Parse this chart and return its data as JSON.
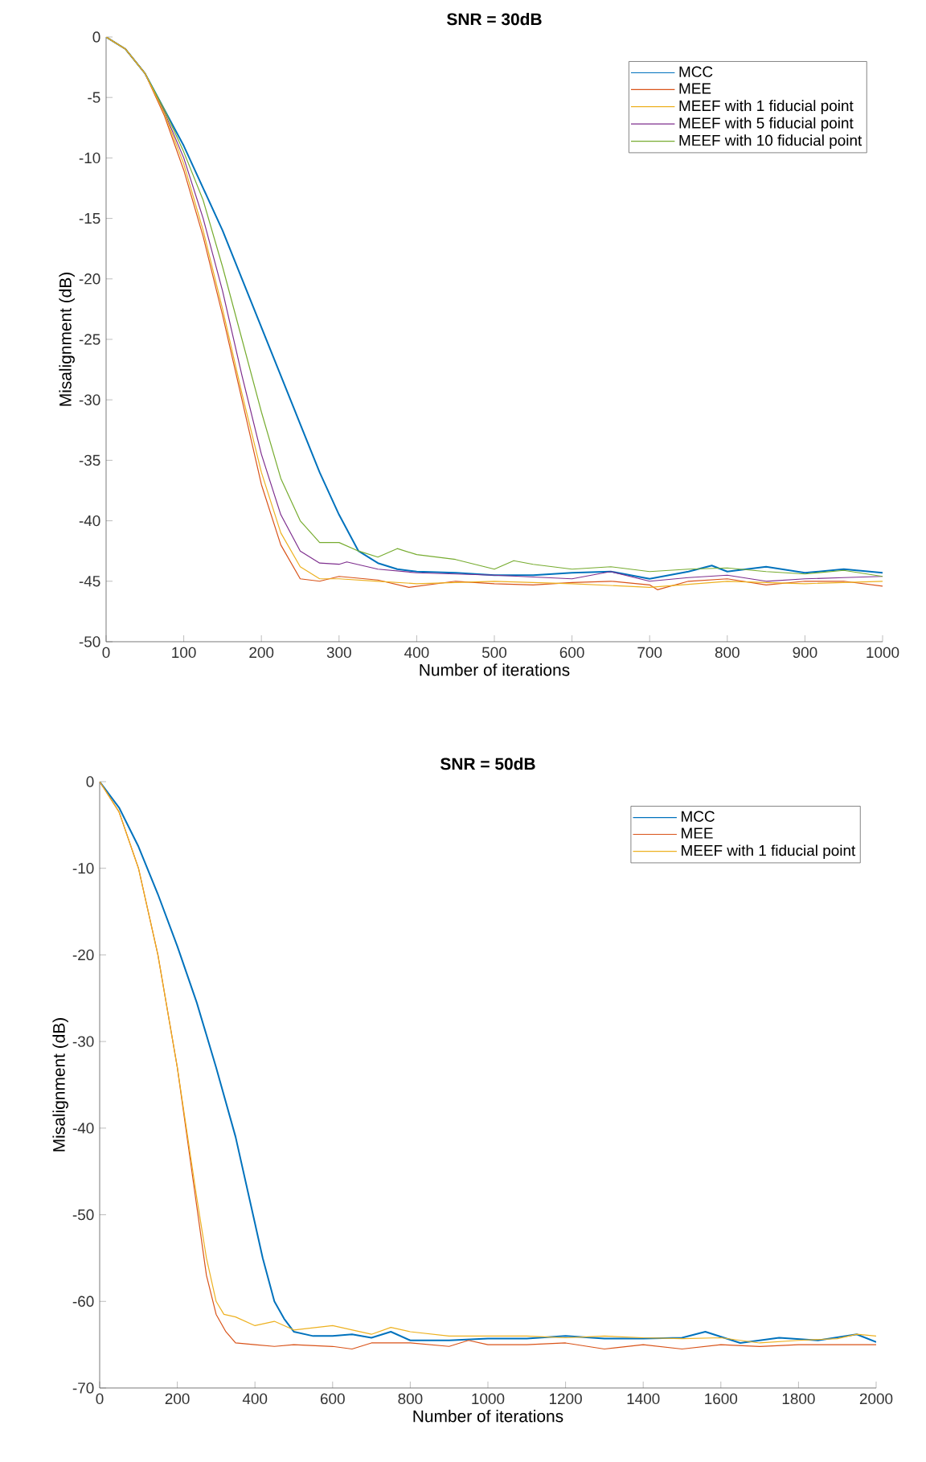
{
  "chart_data": [
    {
      "type": "line",
      "title": "SNR = 30dB",
      "xlabel": "Number of iterations",
      "ylabel": "Misalignment (dB)",
      "xlim": [
        0,
        1000
      ],
      "ylim": [
        -50,
        0
      ],
      "xticks": [
        0,
        100,
        200,
        300,
        400,
        500,
        600,
        700,
        800,
        900,
        1000
      ],
      "yticks": [
        -50,
        -45,
        -40,
        -35,
        -30,
        -25,
        -20,
        -15,
        -10,
        -5,
        0
      ],
      "legend": "top right",
      "series": [
        {
          "name": "MCC",
          "color": "#0072bd",
          "x": [
            0,
            25,
            50,
            75,
            100,
            125,
            150,
            175,
            200,
            225,
            250,
            275,
            300,
            325,
            350,
            375,
            400,
            450,
            500,
            550,
            600,
            650,
            700,
            750,
            780,
            800,
            850,
            900,
            950,
            1000
          ],
          "values": [
            0,
            -1,
            -3,
            -6,
            -9,
            -12.5,
            -16,
            -20,
            -24,
            -28,
            -32,
            -36,
            -39.5,
            -42.5,
            -43.5,
            -44,
            -44.2,
            -44.3,
            -44.5,
            -44.5,
            -44.3,
            -44.2,
            -44.8,
            -44.2,
            -43.7,
            -44.2,
            -43.8,
            -44.3,
            -44,
            -44.3
          ]
        },
        {
          "name": "MEE",
          "color": "#d95319",
          "x": [
            0,
            25,
            50,
            75,
            100,
            125,
            150,
            175,
            200,
            225,
            250,
            275,
            300,
            350,
            390,
            450,
            500,
            550,
            600,
            650,
            700,
            710,
            750,
            800,
            850,
            900,
            950,
            1000
          ],
          "values": [
            0,
            -1,
            -3,
            -6.5,
            -11,
            -16.5,
            -23,
            -30,
            -37,
            -42,
            -44.8,
            -45,
            -44.6,
            -44.9,
            -45.5,
            -45,
            -45.2,
            -45.3,
            -45.1,
            -45,
            -45.3,
            -45.7,
            -45,
            -44.8,
            -45.3,
            -45,
            -45,
            -45.4
          ]
        },
        {
          "name": "MEEF with 1 fiducial point",
          "color": "#edb120",
          "x": [
            0,
            25,
            50,
            75,
            100,
            125,
            150,
            175,
            200,
            225,
            250,
            275,
            300,
            350,
            400,
            500,
            600,
            700,
            800,
            900,
            1000
          ],
          "values": [
            0,
            -1,
            -3,
            -6.3,
            -10.5,
            -16,
            -22.5,
            -29.5,
            -36,
            -41,
            -43.8,
            -44.8,
            -44.8,
            -45,
            -45.2,
            -45,
            -45.2,
            -45.5,
            -45,
            -45.2,
            -45
          ]
        },
        {
          "name": "MEEF with 5 fiducial point",
          "color": "#7e2f8e",
          "x": [
            0,
            25,
            50,
            75,
            100,
            125,
            150,
            175,
            200,
            225,
            250,
            275,
            300,
            310,
            350,
            400,
            500,
            600,
            650,
            700,
            750,
            800,
            850,
            900,
            950,
            1000
          ],
          "values": [
            0,
            -1,
            -3,
            -6.2,
            -10,
            -15,
            -21,
            -28,
            -34.5,
            -39.5,
            -42.5,
            -43.5,
            -43.6,
            -43.4,
            -44,
            -44.3,
            -44.5,
            -44.8,
            -44.2,
            -45,
            -44.7,
            -44.5,
            -45,
            -44.8,
            -44.7,
            -44.6
          ]
        },
        {
          "name": "MEEF with 10 fiducial point",
          "color": "#77ac30",
          "x": [
            0,
            25,
            50,
            75,
            100,
            125,
            150,
            175,
            200,
            225,
            250,
            275,
            300,
            325,
            350,
            375,
            400,
            450,
            500,
            525,
            550,
            600,
            650,
            700,
            750,
            800,
            850,
            900,
            950,
            1000
          ],
          "values": [
            0,
            -1,
            -3,
            -6,
            -9.5,
            -13.5,
            -19,
            -25,
            -31,
            -36.5,
            -40,
            -41.8,
            -41.8,
            -42.5,
            -43,
            -42.3,
            -42.8,
            -43.2,
            -44,
            -43.3,
            -43.6,
            -44,
            -43.8,
            -44.2,
            -44,
            -43.9,
            -44.2,
            -44.4,
            -44.1,
            -44.6
          ]
        }
      ]
    },
    {
      "type": "line",
      "title": "SNR = 50dB",
      "xlabel": "Number of iterations",
      "ylabel": "Misalignment (dB)",
      "xlim": [
        0,
        2000
      ],
      "ylim": [
        -70,
        0
      ],
      "xticks": [
        0,
        200,
        400,
        600,
        800,
        1000,
        1200,
        1400,
        1600,
        1800,
        2000
      ],
      "yticks": [
        -70,
        -60,
        -50,
        -40,
        -30,
        -20,
        -10,
        0
      ],
      "legend": "top right",
      "series": [
        {
          "name": "MCC",
          "color": "#0072bd",
          "x": [
            0,
            50,
            100,
            150,
            200,
            250,
            300,
            350,
            400,
            420,
            450,
            475,
            500,
            550,
            600,
            650,
            700,
            750,
            800,
            900,
            1000,
            1100,
            1200,
            1300,
            1400,
            1500,
            1560,
            1650,
            1750,
            1850,
            1950,
            2000
          ],
          "values": [
            0,
            -3,
            -7.5,
            -13,
            -19,
            -25.5,
            -33,
            -41,
            -51,
            -55,
            -60,
            -62,
            -63.5,
            -64,
            -64,
            -63.8,
            -64.2,
            -63.5,
            -64.5,
            -64.5,
            -64.3,
            -64.3,
            -64,
            -64.3,
            -64.3,
            -64.2,
            -63.5,
            -64.8,
            -64.2,
            -64.5,
            -63.8,
            -64.7
          ]
        },
        {
          "name": "MEE",
          "color": "#d95319",
          "x": [
            0,
            50,
            100,
            150,
            200,
            250,
            275,
            300,
            325,
            350,
            400,
            450,
            500,
            600,
            650,
            700,
            800,
            900,
            950,
            1000,
            1100,
            1200,
            1300,
            1400,
            1500,
            1600,
            1700,
            1800,
            1900,
            2000
          ],
          "values": [
            0,
            -3.5,
            -10,
            -20,
            -33,
            -49,
            -57,
            -61.5,
            -63.5,
            -64.8,
            -65,
            -65.2,
            -65,
            -65.2,
            -65.5,
            -64.8,
            -64.8,
            -65.2,
            -64.5,
            -65,
            -65,
            -64.8,
            -65.5,
            -65,
            -65.5,
            -65,
            -65.2,
            -65,
            -65,
            -65
          ]
        },
        {
          "name": "MEEF with 1 fiducial point",
          "color": "#edb120",
          "x": [
            0,
            50,
            100,
            150,
            200,
            250,
            275,
            300,
            320,
            350,
            400,
            450,
            500,
            600,
            700,
            750,
            800,
            900,
            1000,
            1100,
            1200,
            1300,
            1400,
            1500,
            1600,
            1700,
            1800,
            1900,
            1950,
            2000
          ],
          "values": [
            0,
            -3.5,
            -10,
            -20,
            -33,
            -48,
            -55,
            -60,
            -61.5,
            -61.8,
            -62.8,
            -62.3,
            -63.3,
            -62.8,
            -63.8,
            -63,
            -63.5,
            -64,
            -64,
            -64,
            -64.2,
            -64,
            -64.2,
            -64.3,
            -64.2,
            -64.8,
            -64.5,
            -64.3,
            -63.8,
            -64
          ]
        }
      ]
    }
  ]
}
